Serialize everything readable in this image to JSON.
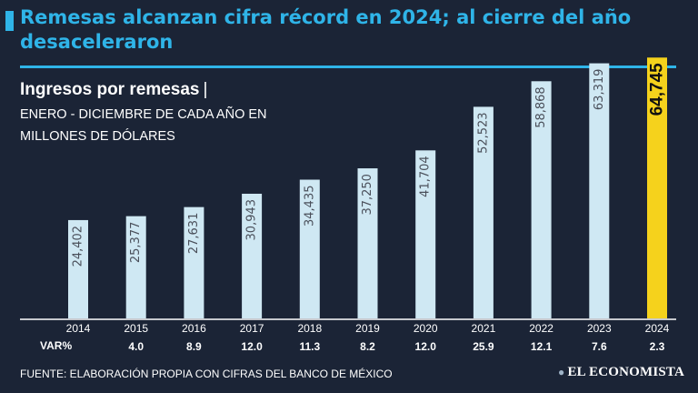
{
  "header": {
    "title": "Remesas alcanzan cifra récord en 2024; al cierre del año desaceleraron",
    "accent_color": "#2fb4e8"
  },
  "subtitle": {
    "main": "Ingresos por remesas",
    "separator": "|",
    "description": "ENERO - DICIEMBRE DE CADA AÑO EN MILLONES DE DÓLARES"
  },
  "chart_data": {
    "type": "bar",
    "title": "Ingresos por remesas",
    "xlabel": "",
    "ylabel": "Millones de dólares",
    "ylim": [
      0,
      70000
    ],
    "categories": [
      "2014",
      "2015",
      "2016",
      "2017",
      "2018",
      "2019",
      "2020",
      "2021",
      "2022",
      "2023",
      "2024"
    ],
    "values": [
      24402,
      25377,
      27631,
      30943,
      34435,
      37250,
      41704,
      52523,
      58868,
      63319,
      64745
    ],
    "value_labels": [
      "24,402",
      "25,377",
      "27,631",
      "30,943",
      "34,435",
      "37,250",
      "41,704",
      "52,523",
      "58,868",
      "63,319",
      "64,745"
    ],
    "highlight_index": 10,
    "bar_color": "#cfe8f3",
    "highlight_color": "#f5d21c",
    "var_label": "VAR%",
    "var_values": [
      "",
      "4.0",
      "8.9",
      "12.0",
      "11.3",
      "8.2",
      "12.0",
      "25.9",
      "12.1",
      "7.6",
      "2.3"
    ]
  },
  "footer": {
    "source": "FUENTE: ELABORACIÓN PROPIA CON CIFRAS DEL BANCO DE MÉXICO",
    "logo_text": "EL ECONOMISTA",
    "logo_icon": "economista-logo-icon"
  }
}
